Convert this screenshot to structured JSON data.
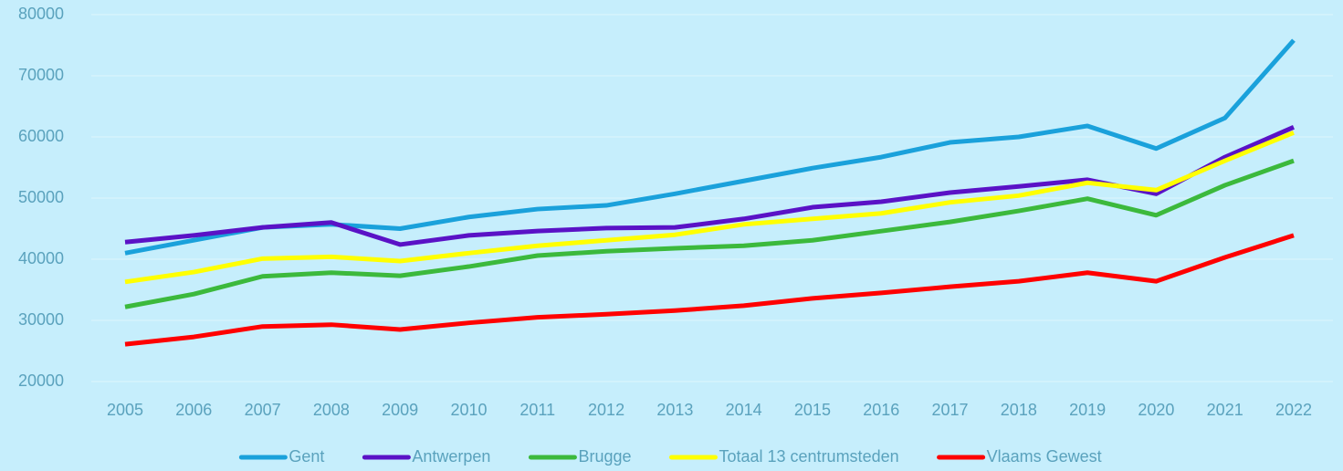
{
  "chart_data": {
    "type": "line",
    "categories": [
      "2005",
      "2006",
      "2007",
      "2008",
      "2009",
      "2010",
      "2011",
      "2012",
      "2013",
      "2014",
      "2015",
      "2016",
      "2017",
      "2018",
      "2019",
      "2020",
      "2021",
      "2022"
    ],
    "series": [
      {
        "name": "Gent",
        "color": "#1aa1db",
        "values": [
          41000,
          43100,
          45200,
          45700,
          45000,
          46900,
          48200,
          48800,
          50700,
          52800,
          54900,
          56700,
          59100,
          60000,
          61800,
          58100,
          63100,
          75800
        ]
      },
      {
        "name": "Antwerpen",
        "color": "#5a12c6",
        "values": [
          42800,
          43900,
          45200,
          46000,
          42400,
          43900,
          44600,
          45100,
          45200,
          46600,
          48500,
          49400,
          50900,
          51900,
          53000,
          50700,
          56700,
          61600
        ]
      },
      {
        "name": "Brugge",
        "color": "#3cb93c",
        "values": [
          32200,
          34300,
          37200,
          37800,
          37300,
          38800,
          40600,
          41300,
          41800,
          42200,
          43100,
          44600,
          46100,
          47900,
          49900,
          47200,
          52100,
          56100
        ]
      },
      {
        "name": "Totaal 13 centrumsteden",
        "color": "#ffff00",
        "values": [
          36300,
          37900,
          40100,
          40400,
          39700,
          41000,
          42200,
          43100,
          44000,
          45700,
          46600,
          47500,
          49300,
          50400,
          52500,
          51300,
          56100,
          60700
        ]
      },
      {
        "name": "Vlaams Gewest",
        "color": "#ff0000",
        "values": [
          26100,
          27300,
          29000,
          29300,
          28500,
          29600,
          30500,
          31000,
          31600,
          32400,
          33600,
          34500,
          35500,
          36400,
          37800,
          36400,
          40300,
          43900
        ]
      }
    ],
    "ylim": [
      20000,
      80000
    ],
    "yticks": [
      20000,
      30000,
      40000,
      50000,
      60000,
      70000,
      80000
    ],
    "grid": true,
    "legend": "bottom"
  }
}
